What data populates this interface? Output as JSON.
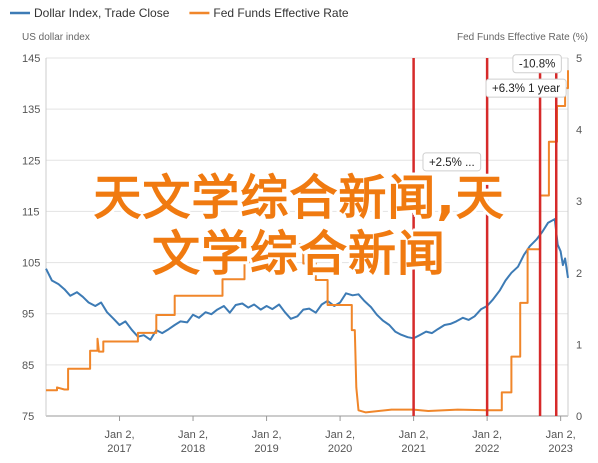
{
  "chart_data": {
    "type": "line",
    "legend": [
      {
        "name": "Dollar Index, Trade Close",
        "color": "#3d7bb5"
      },
      {
        "name": "Fed Funds Effective Rate",
        "color": "#f0862a"
      }
    ],
    "left_axis_title": "US dollar index",
    "right_axis_title": "Fed Funds Effective Rate (%)",
    "y_left": {
      "min": 75,
      "max": 145,
      "ticks": [
        75,
        85,
        95,
        105,
        115,
        125,
        135,
        145
      ]
    },
    "y_right": {
      "min": 0,
      "max": 5,
      "ticks": [
        0,
        1,
        2,
        3,
        4,
        5
      ]
    },
    "x_ticks": [
      {
        "year": 2017,
        "line1": "Jan 2,",
        "line2": "2017"
      },
      {
        "year": 2018,
        "line1": "Jan 2,",
        "line2": "2018"
      },
      {
        "year": 2019,
        "line1": "Jan 2,",
        "line2": "2019"
      },
      {
        "year": 2020,
        "line1": "Jan 2,",
        "line2": "2020"
      },
      {
        "year": 2021,
        "line1": "Jan 2,",
        "line2": "2021"
      },
      {
        "year": 2022,
        "line1": "Jan 2,",
        "line2": "2022"
      },
      {
        "year": 2023,
        "line1": "Jan 2,",
        "line2": "2023"
      }
    ],
    "x_range": [
      2016.0,
      2023.1
    ],
    "vertical_markers": [
      2021.0,
      2022.0,
      2022.72,
      2022.94
    ],
    "series": [
      {
        "name": "Dollar Index, Trade Close",
        "axis": "left",
        "points": [
          [
            2016.0,
            103.8
          ],
          [
            2016.08,
            101.5
          ],
          [
            2016.17,
            100.8
          ],
          [
            2016.25,
            99.8
          ],
          [
            2016.33,
            98.5
          ],
          [
            2016.42,
            99.2
          ],
          [
            2016.5,
            98.3
          ],
          [
            2016.58,
            97.2
          ],
          [
            2016.67,
            96.5
          ],
          [
            2016.75,
            97.2
          ],
          [
            2016.83,
            95.3
          ],
          [
            2016.92,
            94.0
          ],
          [
            2017.0,
            92.8
          ],
          [
            2017.08,
            93.5
          ],
          [
            2017.17,
            91.8
          ],
          [
            2017.25,
            90.5
          ],
          [
            2017.33,
            90.8
          ],
          [
            2017.42,
            89.9
          ],
          [
            2017.5,
            91.8
          ],
          [
            2017.58,
            91.2
          ],
          [
            2017.67,
            92.0
          ],
          [
            2017.75,
            92.8
          ],
          [
            2017.83,
            93.5
          ],
          [
            2017.92,
            93.3
          ],
          [
            2018.0,
            94.8
          ],
          [
            2018.08,
            94.2
          ],
          [
            2018.17,
            95.3
          ],
          [
            2018.25,
            94.9
          ],
          [
            2018.33,
            95.8
          ],
          [
            2018.42,
            96.5
          ],
          [
            2018.5,
            95.2
          ],
          [
            2018.58,
            96.7
          ],
          [
            2018.67,
            97.0
          ],
          [
            2018.75,
            96.2
          ],
          [
            2018.83,
            96.8
          ],
          [
            2018.92,
            95.8
          ],
          [
            2019.0,
            96.5
          ],
          [
            2019.08,
            95.9
          ],
          [
            2019.17,
            96.8
          ],
          [
            2019.25,
            95.3
          ],
          [
            2019.33,
            94.0
          ],
          [
            2019.42,
            94.5
          ],
          [
            2019.5,
            95.8
          ],
          [
            2019.58,
            96.0
          ],
          [
            2019.67,
            95.2
          ],
          [
            2019.75,
            96.8
          ],
          [
            2019.83,
            97.5
          ],
          [
            2019.92,
            96.5
          ],
          [
            2020.0,
            97.2
          ],
          [
            2020.08,
            99.0
          ],
          [
            2020.17,
            98.6
          ],
          [
            2020.25,
            98.8
          ],
          [
            2020.33,
            97.5
          ],
          [
            2020.42,
            96.3
          ],
          [
            2020.5,
            94.8
          ],
          [
            2020.58,
            93.7
          ],
          [
            2020.67,
            92.8
          ],
          [
            2020.75,
            91.5
          ],
          [
            2020.83,
            90.9
          ],
          [
            2020.92,
            90.4
          ],
          [
            2021.0,
            90.2
          ],
          [
            2021.08,
            90.8
          ],
          [
            2021.17,
            91.5
          ],
          [
            2021.25,
            91.2
          ],
          [
            2021.33,
            92.0
          ],
          [
            2021.42,
            92.8
          ],
          [
            2021.5,
            93.0
          ],
          [
            2021.58,
            93.5
          ],
          [
            2021.67,
            94.2
          ],
          [
            2021.75,
            93.8
          ],
          [
            2021.83,
            94.5
          ],
          [
            2021.92,
            95.9
          ],
          [
            2022.0,
            96.5
          ],
          [
            2022.08,
            97.8
          ],
          [
            2022.17,
            99.5
          ],
          [
            2022.25,
            101.5
          ],
          [
            2022.33,
            103.0
          ],
          [
            2022.42,
            104.2
          ],
          [
            2022.5,
            106.5
          ],
          [
            2022.58,
            108.2
          ],
          [
            2022.67,
            109.5
          ],
          [
            2022.75,
            111.0
          ],
          [
            2022.83,
            112.8
          ],
          [
            2022.92,
            113.5
          ],
          [
            2022.96,
            108.5
          ],
          [
            2023.0,
            107.2
          ],
          [
            2023.03,
            104.5
          ],
          [
            2023.06,
            105.8
          ],
          [
            2023.1,
            102.0
          ]
        ]
      },
      {
        "name": "Fed Funds Effective Rate",
        "axis": "right",
        "points": [
          [
            2016.0,
            0.36
          ],
          [
            2016.15,
            0.36
          ],
          [
            2016.15,
            0.4
          ],
          [
            2016.25,
            0.37
          ],
          [
            2016.3,
            0.37
          ],
          [
            2016.3,
            0.66
          ],
          [
            2016.6,
            0.66
          ],
          [
            2016.6,
            0.91
          ],
          [
            2016.7,
            0.91
          ],
          [
            2016.7,
            1.08
          ],
          [
            2016.72,
            0.9
          ],
          [
            2016.78,
            0.9
          ],
          [
            2016.78,
            1.04
          ],
          [
            2017.25,
            1.04
          ],
          [
            2017.25,
            1.16
          ],
          [
            2017.5,
            1.16
          ],
          [
            2017.5,
            1.41
          ],
          [
            2017.75,
            1.41
          ],
          [
            2017.75,
            1.68
          ],
          [
            2018.4,
            1.68
          ],
          [
            2018.4,
            1.91
          ],
          [
            2018.7,
            1.91
          ],
          [
            2018.7,
            2.15
          ],
          [
            2018.92,
            2.15
          ],
          [
            2018.92,
            2.4
          ],
          [
            2019.5,
            2.4
          ],
          [
            2019.5,
            2.13
          ],
          [
            2019.67,
            2.13
          ],
          [
            2019.67,
            1.9
          ],
          [
            2019.83,
            1.9
          ],
          [
            2019.83,
            1.55
          ],
          [
            2020.16,
            1.55
          ],
          [
            2020.16,
            1.2
          ],
          [
            2020.2,
            1.2
          ],
          [
            2020.22,
            0.4
          ],
          [
            2020.25,
            0.08
          ],
          [
            2020.35,
            0.05
          ],
          [
            2020.7,
            0.09
          ],
          [
            2021.0,
            0.09
          ],
          [
            2021.2,
            0.07
          ],
          [
            2021.6,
            0.09
          ],
          [
            2022.0,
            0.08
          ],
          [
            2022.2,
            0.08
          ],
          [
            2022.2,
            0.33
          ],
          [
            2022.33,
            0.33
          ],
          [
            2022.33,
            0.83
          ],
          [
            2022.45,
            0.83
          ],
          [
            2022.45,
            1.58
          ],
          [
            2022.55,
            1.58
          ],
          [
            2022.55,
            2.33
          ],
          [
            2022.72,
            2.33
          ],
          [
            2022.72,
            3.08
          ],
          [
            2022.84,
            3.08
          ],
          [
            2022.84,
            3.83
          ],
          [
            2022.95,
            3.83
          ],
          [
            2022.95,
            4.33
          ],
          [
            2023.06,
            4.33
          ],
          [
            2023.06,
            4.58
          ],
          [
            2023.1,
            4.58
          ],
          [
            2023.1,
            4.83
          ]
        ]
      }
    ],
    "callouts": [
      {
        "label": "-10.8%",
        "x": 2022.68,
        "y_right": 4.92
      },
      {
        "label": "+6.3% 1 year",
        "x": 2022.53,
        "y_right": 4.58
      },
      {
        "label": "+2.5% ...",
        "x": 2021.52,
        "y_right": 3.55
      }
    ],
    "overlay_text": [
      "天文学综合新闻,天",
      "文学综合新闻"
    ]
  }
}
